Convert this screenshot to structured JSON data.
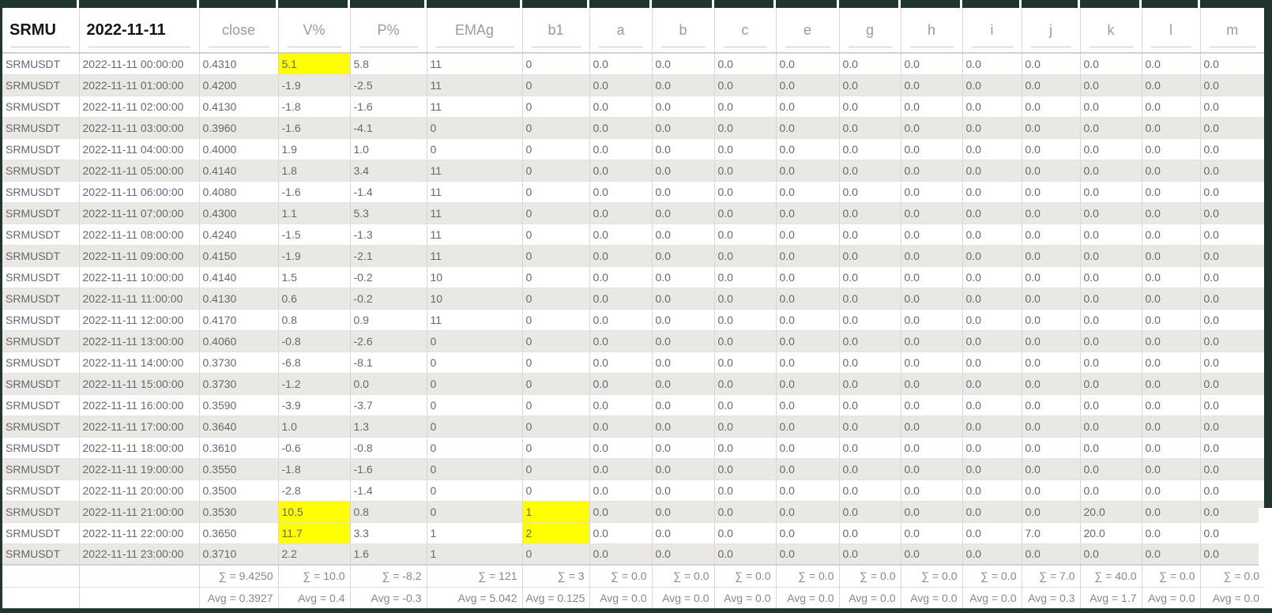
{
  "window": {
    "frame_color": "#203430"
  },
  "table": {
    "highlight_color": "#ffff00",
    "stripe_color": "#eae8e5",
    "header": {
      "columns": [
        {
          "label": "SRMU",
          "bold": true
        },
        {
          "label": "2022-11-11",
          "bold": true
        },
        {
          "label": "close",
          "bold": false
        },
        {
          "label": "V%",
          "bold": false
        },
        {
          "label": "P%",
          "bold": false
        },
        {
          "label": "EMAg",
          "bold": false
        },
        {
          "label": "b1",
          "bold": false
        },
        {
          "label": "a",
          "bold": false
        },
        {
          "label": "b",
          "bold": false
        },
        {
          "label": "c",
          "bold": false
        },
        {
          "label": "e",
          "bold": false
        },
        {
          "label": "g",
          "bold": false
        },
        {
          "label": "h",
          "bold": false
        },
        {
          "label": "i",
          "bold": false
        },
        {
          "label": "j",
          "bold": false
        },
        {
          "label": "k",
          "bold": false
        },
        {
          "label": "l",
          "bold": false
        },
        {
          "label": "m",
          "bold": false
        }
      ]
    },
    "rows": [
      {
        "cells": [
          "SRMUSDT",
          "2022-11-11 00:00:00",
          "0.4310",
          "5.1",
          "5.8",
          "11",
          "0",
          "0.0",
          "0.0",
          "0.0",
          "0.0",
          "0.0",
          "0.0",
          "0.0",
          "0.0",
          "0.0",
          "0.0",
          "0.0"
        ],
        "highlight_cols": [
          3
        ]
      },
      {
        "cells": [
          "SRMUSDT",
          "2022-11-11 01:00:00",
          "0.4200",
          "-1.9",
          "-2.5",
          "11",
          "0",
          "0.0",
          "0.0",
          "0.0",
          "0.0",
          "0.0",
          "0.0",
          "0.0",
          "0.0",
          "0.0",
          "0.0",
          "0.0"
        ],
        "highlight_cols": []
      },
      {
        "cells": [
          "SRMUSDT",
          "2022-11-11 02:00:00",
          "0.4130",
          "-1.8",
          "-1.6",
          "11",
          "0",
          "0.0",
          "0.0",
          "0.0",
          "0.0",
          "0.0",
          "0.0",
          "0.0",
          "0.0",
          "0.0",
          "0.0",
          "0.0"
        ],
        "highlight_cols": []
      },
      {
        "cells": [
          "SRMUSDT",
          "2022-11-11 03:00:00",
          "0.3960",
          "-1.6",
          "-4.1",
          "0",
          "0",
          "0.0",
          "0.0",
          "0.0",
          "0.0",
          "0.0",
          "0.0",
          "0.0",
          "0.0",
          "0.0",
          "0.0",
          "0.0"
        ],
        "highlight_cols": []
      },
      {
        "cells": [
          "SRMUSDT",
          "2022-11-11 04:00:00",
          "0.4000",
          "1.9",
          "1.0",
          "0",
          "0",
          "0.0",
          "0.0",
          "0.0",
          "0.0",
          "0.0",
          "0.0",
          "0.0",
          "0.0",
          "0.0",
          "0.0",
          "0.0"
        ],
        "highlight_cols": []
      },
      {
        "cells": [
          "SRMUSDT",
          "2022-11-11 05:00:00",
          "0.4140",
          "1.8",
          "3.4",
          "11",
          "0",
          "0.0",
          "0.0",
          "0.0",
          "0.0",
          "0.0",
          "0.0",
          "0.0",
          "0.0",
          "0.0",
          "0.0",
          "0.0"
        ],
        "highlight_cols": []
      },
      {
        "cells": [
          "SRMUSDT",
          "2022-11-11 06:00:00",
          "0.4080",
          "-1.6",
          "-1.4",
          "11",
          "0",
          "0.0",
          "0.0",
          "0.0",
          "0.0",
          "0.0",
          "0.0",
          "0.0",
          "0.0",
          "0.0",
          "0.0",
          "0.0"
        ],
        "highlight_cols": []
      },
      {
        "cells": [
          "SRMUSDT",
          "2022-11-11 07:00:00",
          "0.4300",
          "1.1",
          "5.3",
          "11",
          "0",
          "0.0",
          "0.0",
          "0.0",
          "0.0",
          "0.0",
          "0.0",
          "0.0",
          "0.0",
          "0.0",
          "0.0",
          "0.0"
        ],
        "highlight_cols": []
      },
      {
        "cells": [
          "SRMUSDT",
          "2022-11-11 08:00:00",
          "0.4240",
          "-1.5",
          "-1.3",
          "11",
          "0",
          "0.0",
          "0.0",
          "0.0",
          "0.0",
          "0.0",
          "0.0",
          "0.0",
          "0.0",
          "0.0",
          "0.0",
          "0.0"
        ],
        "highlight_cols": []
      },
      {
        "cells": [
          "SRMUSDT",
          "2022-11-11 09:00:00",
          "0.4150",
          "-1.9",
          "-2.1",
          "11",
          "0",
          "0.0",
          "0.0",
          "0.0",
          "0.0",
          "0.0",
          "0.0",
          "0.0",
          "0.0",
          "0.0",
          "0.0",
          "0.0"
        ],
        "highlight_cols": []
      },
      {
        "cells": [
          "SRMUSDT",
          "2022-11-11 10:00:00",
          "0.4140",
          "1.5",
          "-0.2",
          "10",
          "0",
          "0.0",
          "0.0",
          "0.0",
          "0.0",
          "0.0",
          "0.0",
          "0.0",
          "0.0",
          "0.0",
          "0.0",
          "0.0"
        ],
        "highlight_cols": []
      },
      {
        "cells": [
          "SRMUSDT",
          "2022-11-11 11:00:00",
          "0.4130",
          "0.6",
          "-0.2",
          "10",
          "0",
          "0.0",
          "0.0",
          "0.0",
          "0.0",
          "0.0",
          "0.0",
          "0.0",
          "0.0",
          "0.0",
          "0.0",
          "0.0"
        ],
        "highlight_cols": []
      },
      {
        "cells": [
          "SRMUSDT",
          "2022-11-11 12:00:00",
          "0.4170",
          "0.8",
          "0.9",
          "11",
          "0",
          "0.0",
          "0.0",
          "0.0",
          "0.0",
          "0.0",
          "0.0",
          "0.0",
          "0.0",
          "0.0",
          "0.0",
          "0.0"
        ],
        "highlight_cols": []
      },
      {
        "cells": [
          "SRMUSDT",
          "2022-11-11 13:00:00",
          "0.4060",
          "-0.8",
          "-2.6",
          "0",
          "0",
          "0.0",
          "0.0",
          "0.0",
          "0.0",
          "0.0",
          "0.0",
          "0.0",
          "0.0",
          "0.0",
          "0.0",
          "0.0"
        ],
        "highlight_cols": []
      },
      {
        "cells": [
          "SRMUSDT",
          "2022-11-11 14:00:00",
          "0.3730",
          "-6.8",
          "-8.1",
          "0",
          "0",
          "0.0",
          "0.0",
          "0.0",
          "0.0",
          "0.0",
          "0.0",
          "0.0",
          "0.0",
          "0.0",
          "0.0",
          "0.0"
        ],
        "highlight_cols": []
      },
      {
        "cells": [
          "SRMUSDT",
          "2022-11-11 15:00:00",
          "0.3730",
          "-1.2",
          "0.0",
          "0",
          "0",
          "0.0",
          "0.0",
          "0.0",
          "0.0",
          "0.0",
          "0.0",
          "0.0",
          "0.0",
          "0.0",
          "0.0",
          "0.0"
        ],
        "highlight_cols": []
      },
      {
        "cells": [
          "SRMUSDT",
          "2022-11-11 16:00:00",
          "0.3590",
          "-3.9",
          "-3.7",
          "0",
          "0",
          "0.0",
          "0.0",
          "0.0",
          "0.0",
          "0.0",
          "0.0",
          "0.0",
          "0.0",
          "0.0",
          "0.0",
          "0.0"
        ],
        "highlight_cols": []
      },
      {
        "cells": [
          "SRMUSDT",
          "2022-11-11 17:00:00",
          "0.3640",
          "1.0",
          "1.3",
          "0",
          "0",
          "0.0",
          "0.0",
          "0.0",
          "0.0",
          "0.0",
          "0.0",
          "0.0",
          "0.0",
          "0.0",
          "0.0",
          "0.0"
        ],
        "highlight_cols": []
      },
      {
        "cells": [
          "SRMUSDT",
          "2022-11-11 18:00:00",
          "0.3610",
          "-0.6",
          "-0.8",
          "0",
          "0",
          "0.0",
          "0.0",
          "0.0",
          "0.0",
          "0.0",
          "0.0",
          "0.0",
          "0.0",
          "0.0",
          "0.0",
          "0.0"
        ],
        "highlight_cols": []
      },
      {
        "cells": [
          "SRMUSDT",
          "2022-11-11 19:00:00",
          "0.3550",
          "-1.8",
          "-1.6",
          "0",
          "0",
          "0.0",
          "0.0",
          "0.0",
          "0.0",
          "0.0",
          "0.0",
          "0.0",
          "0.0",
          "0.0",
          "0.0",
          "0.0"
        ],
        "highlight_cols": []
      },
      {
        "cells": [
          "SRMUSDT",
          "2022-11-11 20:00:00",
          "0.3500",
          "-2.8",
          "-1.4",
          "0",
          "0",
          "0.0",
          "0.0",
          "0.0",
          "0.0",
          "0.0",
          "0.0",
          "0.0",
          "0.0",
          "0.0",
          "0.0",
          "0.0"
        ],
        "highlight_cols": []
      },
      {
        "cells": [
          "SRMUSDT",
          "2022-11-11 21:00:00",
          "0.3530",
          "10.5",
          "0.8",
          "0",
          "1",
          "0.0",
          "0.0",
          "0.0",
          "0.0",
          "0.0",
          "0.0",
          "0.0",
          "0.0",
          "20.0",
          "0.0",
          "0.0"
        ],
        "highlight_cols": [
          3,
          6
        ]
      },
      {
        "cells": [
          "SRMUSDT",
          "2022-11-11 22:00:00",
          "0.3650",
          "11.7",
          "3.3",
          "1",
          "2",
          "0.0",
          "0.0",
          "0.0",
          "0.0",
          "0.0",
          "0.0",
          "0.0",
          "7.0",
          "20.0",
          "0.0",
          "0.0"
        ],
        "highlight_cols": [
          3,
          6
        ]
      },
      {
        "cells": [
          "SRMUSDT",
          "2022-11-11 23:00:00",
          "0.3710",
          "2.2",
          "1.6",
          "1",
          "0",
          "0.0",
          "0.0",
          "0.0",
          "0.0",
          "0.0",
          "0.0",
          "0.0",
          "0.0",
          "0.0",
          "0.0",
          "0.0"
        ],
        "highlight_cols": []
      }
    ],
    "footer": {
      "sum_row": [
        "",
        "",
        "∑ = 9.4250",
        "∑ = 10.0",
        "∑ = -8.2",
        "∑ = 121",
        "∑ = 3",
        "∑ = 0.0",
        "∑ = 0.0",
        "∑ = 0.0",
        "∑ = 0.0",
        "∑ = 0.0",
        "∑ = 0.0",
        "∑ = 0.0",
        "∑ = 7.0",
        "∑ = 40.0",
        "∑ = 0.0",
        "∑ = 0.0"
      ],
      "avg_row": [
        "",
        "",
        "Avg = 0.3927",
        "Avg = 0.4",
        "Avg = -0.3",
        "Avg = 5.042",
        "Avg = 0.125",
        "Avg = 0.0",
        "Avg = 0.0",
        "Avg = 0.0",
        "Avg = 0.0",
        "Avg = 0.0",
        "Avg = 0.0",
        "Avg = 0.0",
        "Avg = 0.3",
        "Avg = 1.7",
        "Avg = 0.0",
        "Avg = 0.0"
      ]
    }
  }
}
